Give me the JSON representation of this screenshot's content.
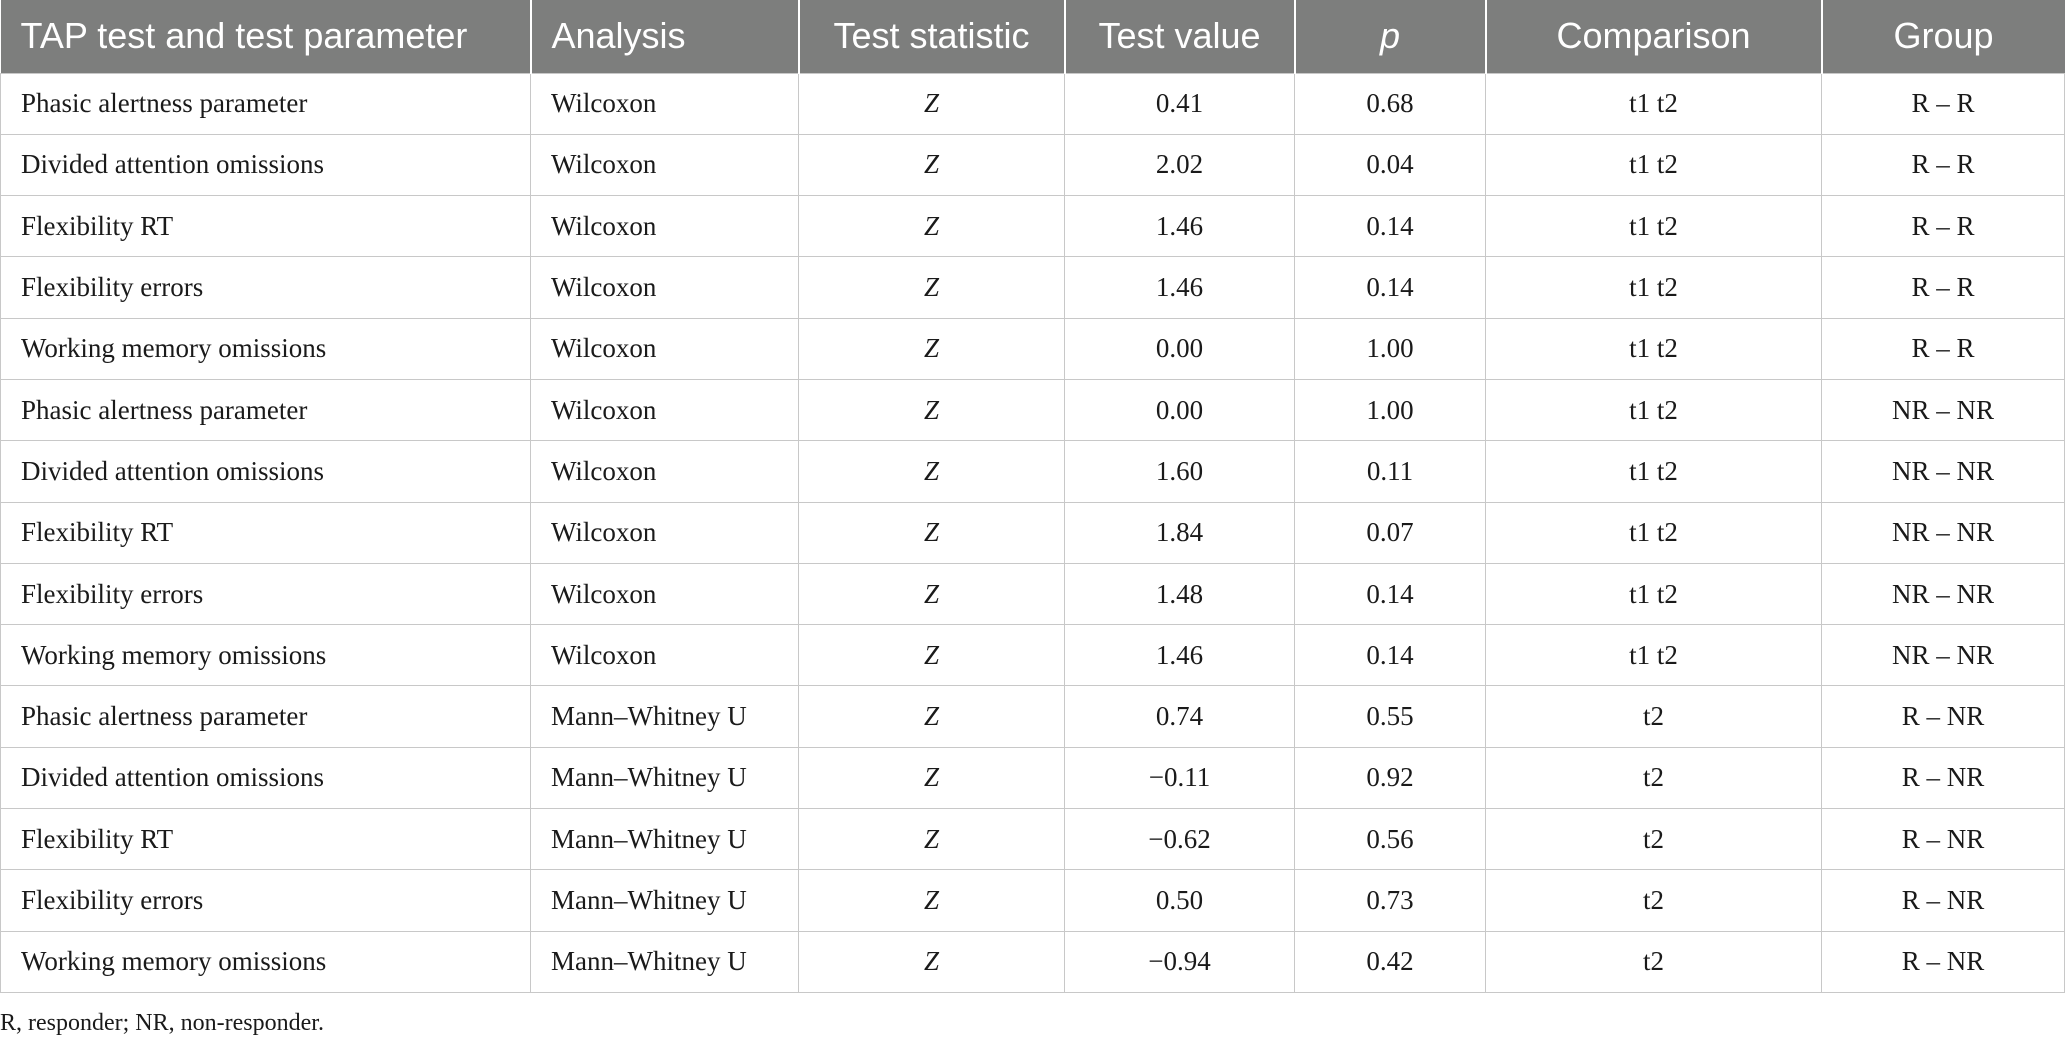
{
  "table": {
    "headers": [
      "TAP test and test parameter",
      "Analysis",
      "Test statistic",
      "Test value",
      "p",
      "Comparison",
      "Group"
    ],
    "rows": [
      [
        "Phasic alertness parameter",
        "Wilcoxon",
        "Z",
        "0.41",
        "0.68",
        "t1 t2",
        "R – R"
      ],
      [
        "Divided attention omissions",
        "Wilcoxon",
        "Z",
        "2.02",
        "0.04",
        "t1 t2",
        "R – R"
      ],
      [
        "Flexibility RT",
        "Wilcoxon",
        "Z",
        "1.46",
        "0.14",
        "t1 t2",
        "R – R"
      ],
      [
        "Flexibility errors",
        "Wilcoxon",
        "Z",
        "1.46",
        "0.14",
        "t1 t2",
        "R – R"
      ],
      [
        "Working memory omissions",
        "Wilcoxon",
        "Z",
        "0.00",
        "1.00",
        "t1 t2",
        "R – R"
      ],
      [
        "Phasic alertness parameter",
        "Wilcoxon",
        "Z",
        "0.00",
        "1.00",
        "t1 t2",
        "NR – NR"
      ],
      [
        "Divided attention omissions",
        "Wilcoxon",
        "Z",
        "1.60",
        "0.11",
        "t1 t2",
        "NR – NR"
      ],
      [
        "Flexibility RT",
        "Wilcoxon",
        "Z",
        "1.84",
        "0.07",
        "t1 t2",
        "NR – NR"
      ],
      [
        "Flexibility errors",
        "Wilcoxon",
        "Z",
        "1.48",
        "0.14",
        "t1 t2",
        "NR – NR"
      ],
      [
        "Working memory omissions",
        "Wilcoxon",
        "Z",
        "1.46",
        "0.14",
        "t1 t2",
        "NR – NR"
      ],
      [
        "Phasic alertness parameter",
        "Mann–Whitney U",
        "Z",
        "0.74",
        "0.55",
        "t2",
        "R – NR"
      ],
      [
        "Divided attention omissions",
        "Mann–Whitney U",
        "Z",
        "−0.11",
        "0.92",
        "t2",
        "R – NR"
      ],
      [
        "Flexibility RT",
        "Mann–Whitney U",
        "Z",
        "−0.62",
        "0.56",
        "t2",
        "R – NR"
      ],
      [
        "Flexibility errors",
        "Mann–Whitney U",
        "Z",
        "0.50",
        "0.73",
        "t2",
        "R – NR"
      ],
      [
        "Working memory omissions",
        "Mann–Whitney U",
        "Z",
        "−0.94",
        "0.42",
        "t2",
        "R – NR"
      ]
    ]
  },
  "footnote": "R, responder; NR, non-responder."
}
